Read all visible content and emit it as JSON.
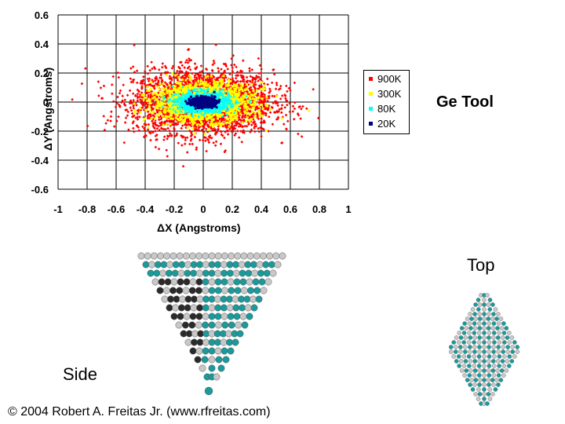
{
  "title": "Ge Tool",
  "side_label": "Side",
  "top_label": "Top",
  "copyright": "© 2004 Robert A. Freitas Jr. (www.rfreitas.com)",
  "colors": {
    "900K": "#ff0000",
    "300K": "#ffff00",
    "80K": "#00ffff",
    "20K": "#000080",
    "ge_atom": "#1a9a9a",
    "h_atom": "#c8c8c8",
    "dark_atom": "#2a2a2a"
  },
  "icons": {
    "side_view": "molecule-side-view-icon",
    "top_view": "molecule-top-view-icon"
  },
  "chart_data": {
    "type": "scatter",
    "xlabel": "ΔX (Angstroms)",
    "ylabel": "ΔY (Angstroms)",
    "xlim": [
      -1,
      1
    ],
    "ylim": [
      -0.6,
      0.6
    ],
    "xticks": [
      "-1",
      "-0.8",
      "-0.6",
      "-0.4",
      "-0.2",
      "0",
      "0.2",
      "0.4",
      "0.6",
      "0.8",
      "1"
    ],
    "yticks": [
      "0.6",
      "0.4",
      "0.2",
      "0",
      "-0.2",
      "-0.4",
      "-0.6"
    ],
    "grid": true,
    "legend_position": "right",
    "series": [
      {
        "name": "900K",
        "marker": "diamond",
        "sigma_x": 0.24,
        "sigma_y": 0.11,
        "n": 3000
      },
      {
        "name": "300K",
        "marker": "square",
        "sigma_x": 0.17,
        "sigma_y": 0.065,
        "n": 1500
      },
      {
        "name": "80K",
        "marker": "triangle",
        "sigma_x": 0.09,
        "sigma_y": 0.035,
        "n": 1200
      },
      {
        "name": "20K",
        "marker": "square",
        "sigma_x": 0.04,
        "sigma_y": 0.016,
        "n": 700
      }
    ]
  }
}
